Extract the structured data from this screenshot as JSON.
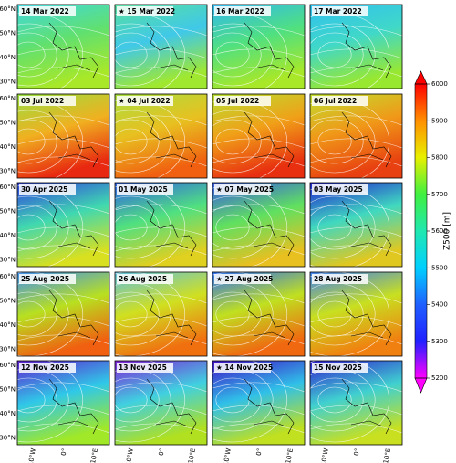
{
  "chart_data": {
    "type": "map-grid",
    "panels": [
      [
        {
          "title": "14 Mar 2022",
          "colors": [
            "#40d8e0",
            "#60e070",
            "#a8e828"
          ]
        },
        {
          "title": "★ 15 Mar 2022",
          "colors": [
            "#58e0a0",
            "#40c8e8",
            "#a0e830"
          ]
        },
        {
          "title": "16 Mar 2022",
          "colors": [
            "#30b8f0",
            "#50e080",
            "#a8e828"
          ]
        },
        {
          "title": "17 Mar 2022",
          "colors": [
            "#30c0f0",
            "#40d8c8",
            "#98e830"
          ]
        }
      ],
      [
        {
          "title": "03 Jul 2022",
          "colors": [
            "#98e040",
            "#f0b020",
            "#e82810"
          ]
        },
        {
          "title": "★ 04 Jul 2022",
          "colors": [
            "#a8e040",
            "#e8c020",
            "#f06010"
          ]
        },
        {
          "title": "05 Jul 2022",
          "colors": [
            "#b8e030",
            "#f0a018",
            "#e83010"
          ]
        },
        {
          "title": "06 Jul 2022",
          "colors": [
            "#c0e030",
            "#f09818",
            "#e84010"
          ]
        }
      ],
      [
        {
          "title": "30 Apr 2025",
          "colors": [
            "#3040e0",
            "#40d8b0",
            "#d8e020"
          ]
        },
        {
          "title": "01 May 2025",
          "colors": [
            "#3060e8",
            "#50e080",
            "#e0d020"
          ]
        },
        {
          "title": "★ 07 May 2025",
          "colors": [
            "#3858e8",
            "#60e060",
            "#e8c020"
          ]
        },
        {
          "title": "03 May 2025",
          "colors": [
            "#2020d0",
            "#40d8c0",
            "#e0c820"
          ]
        }
      ],
      [
        {
          "title": "25 Aug 2025",
          "colors": [
            "#4090f0",
            "#b8e020",
            "#f06010"
          ]
        },
        {
          "title": "26 Aug 2025",
          "colors": [
            "#60c0e0",
            "#d0e020",
            "#f07010"
          ]
        },
        {
          "title": "★ 27 Aug 2025",
          "colors": [
            "#3070f0",
            "#c0e020",
            "#f06810"
          ]
        },
        {
          "title": "28 Aug 2025",
          "colors": [
            "#4080f0",
            "#c8e020",
            "#f08010"
          ]
        }
      ],
      [
        {
          "title": "12 Nov 2025",
          "colors": [
            "#6020d0",
            "#30c8e8",
            "#a0e828"
          ]
        },
        {
          "title": "13 Nov 2025",
          "colors": [
            "#8020d8",
            "#40d0e0",
            "#b0e020"
          ]
        },
        {
          "title": "★ 14 Nov 2025",
          "colors": [
            "#4010c8",
            "#30c0e8",
            "#c0e020"
          ]
        },
        {
          "title": "15 Nov 2025",
          "colors": [
            "#3020d0",
            "#40d0d0",
            "#c8e020"
          ]
        }
      ]
    ],
    "lat_labels": [
      "60°N",
      "50°N",
      "40°N",
      "30°N"
    ],
    "lon_labels": [
      "10°W",
      "0°",
      "10°E"
    ],
    "colorbar": {
      "label": "Z500 [m]",
      "lim": [
        5200,
        6000
      ],
      "ticks": [
        5200,
        5300,
        5400,
        5500,
        5600,
        5700,
        5800,
        5900,
        6000
      ],
      "colors": [
        "#ff00ff",
        "#2020ff",
        "#2060ff",
        "#00d0ff",
        "#20e8b0",
        "#40f040",
        "#e8f000",
        "#ff9000",
        "#ff0000"
      ],
      "extend": "both"
    }
  }
}
